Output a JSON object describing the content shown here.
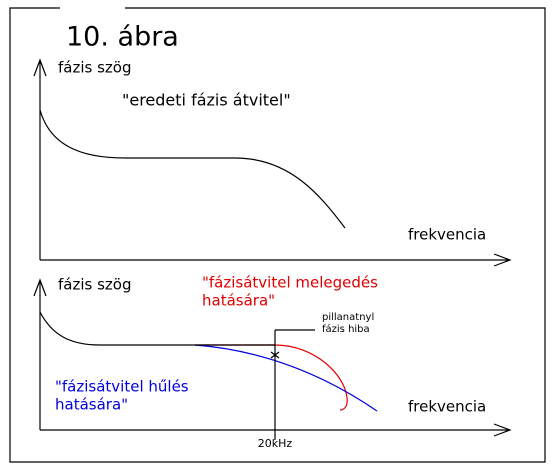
{
  "title": "10.  ábra",
  "top_panel": {
    "y_label": "fázis szög",
    "curve_label": "\"eredeti fázis átvitel\"",
    "x_label": "frekvencia"
  },
  "bottom_panel": {
    "y_label": "fázis szög",
    "red_label": [
      "\"fázisátvitel melegedés",
      "hatására\""
    ],
    "error_label": [
      "pillanatnyl",
      "fázis hiba"
    ],
    "blue_label": [
      "\"fázisátvitel hűlés",
      "hatására\""
    ],
    "x_label": "frekvencia",
    "marker_label": "20kHz"
  }
}
